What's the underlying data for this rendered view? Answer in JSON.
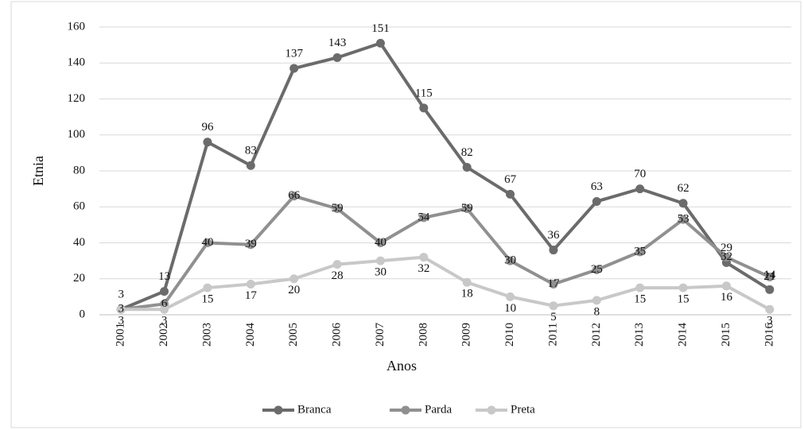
{
  "chart_data": {
    "type": "line",
    "x_label": "Anos",
    "y_label": "Etnia",
    "categories": [
      "2001",
      "2002",
      "2003",
      "2004",
      "2005",
      "2006",
      "2007",
      "2008",
      "2009",
      "2010",
      "2011",
      "2012",
      "2013",
      "2014",
      "2015",
      "2016"
    ],
    "series": [
      {
        "name": "Branca",
        "color": "#6b6b6b",
        "values": [
          3,
          13,
          96,
          83,
          137,
          143,
          151,
          115,
          82,
          67,
          36,
          63,
          70,
          62,
          29,
          14
        ]
      },
      {
        "name": "Parda",
        "color": "#909090",
        "values": [
          3,
          6,
          40,
          39,
          66,
          59,
          40,
          54,
          59,
          30,
          17,
          25,
          35,
          53,
          32,
          21
        ]
      },
      {
        "name": "Preta",
        "color": "#c8c8c8",
        "values": [
          3,
          3,
          15,
          17,
          20,
          28,
          30,
          32,
          18,
          10,
          5,
          8,
          15,
          15,
          16,
          3
        ]
      }
    ],
    "ylim": [
      0,
      160
    ],
    "yticks": [
      0,
      20,
      40,
      60,
      80,
      100,
      120,
      140,
      160
    ],
    "grid": true,
    "legend": "bottom"
  }
}
